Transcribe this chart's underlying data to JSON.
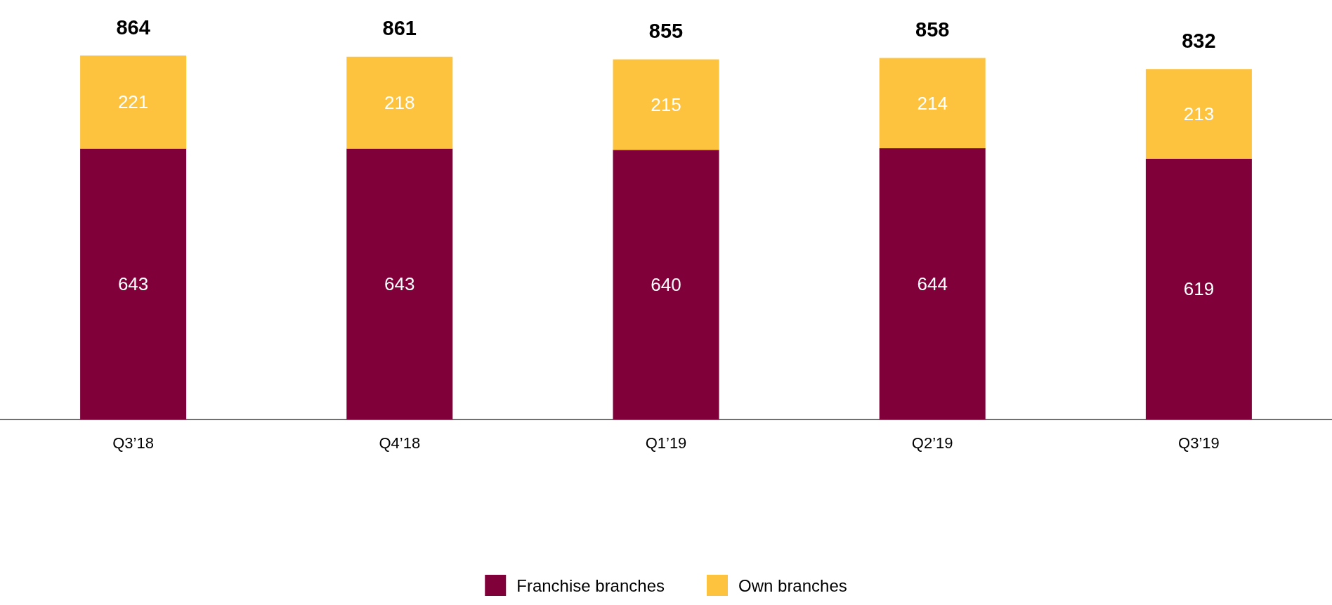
{
  "chart_data": {
    "type": "bar",
    "stacked": true,
    "categories": [
      "Q3’18",
      "Q4’18",
      "Q1’19",
      "Q2’19",
      "Q3’19"
    ],
    "series": [
      {
        "name": "Franchise branches",
        "color": "#80003a",
        "values": [
          643,
          643,
          640,
          644,
          619
        ]
      },
      {
        "name": "Own branches",
        "color": "#fdc33f",
        "values": [
          221,
          218,
          215,
          214,
          213
        ]
      }
    ],
    "data_labels": true,
    "totals": [
      "864",
      "861",
      "855",
      "858",
      "832"
    ],
    "legend": "bottom"
  }
}
